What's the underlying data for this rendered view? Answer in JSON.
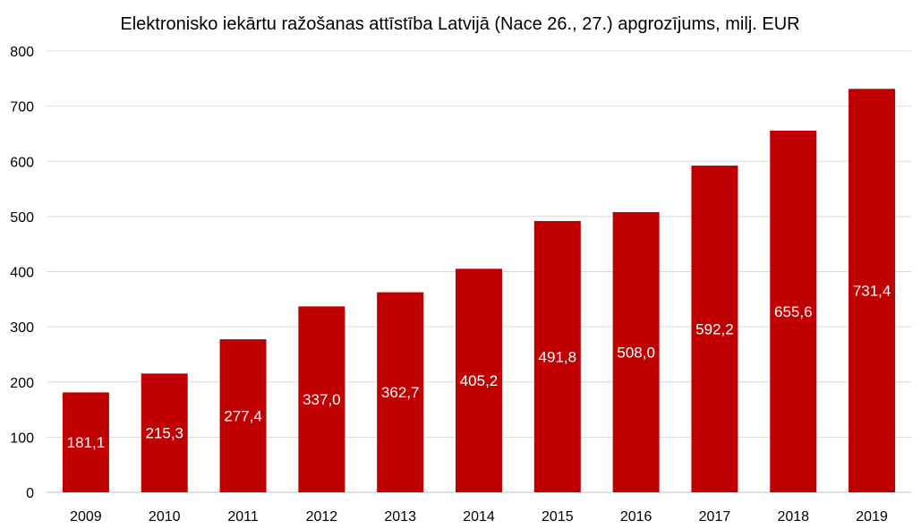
{
  "chart_data": {
    "type": "bar",
    "title": "Elektronisko iekārtu ražošanas attīstība Latvijā (Nace 26., 27.) apgrozījums, milj. EUR",
    "xlabel": "",
    "ylabel": "",
    "categories": [
      "2009",
      "2010",
      "2011",
      "2012",
      "2013",
      "2014",
      "2015",
      "2016",
      "2017",
      "2018",
      "2019"
    ],
    "values": [
      181.1,
      215.3,
      277.4,
      337.0,
      362.7,
      405.2,
      491.8,
      508.0,
      592.2,
      655.6,
      731.4
    ],
    "value_labels": [
      "181,1",
      "215,3",
      "277,4",
      "337,0",
      "362,7",
      "405,2",
      "491,8",
      "508,0",
      "592,2",
      "655,6",
      "731,4"
    ],
    "ylim": [
      0,
      800
    ],
    "yticks": [
      "0",
      "100",
      "200",
      "300",
      "400",
      "500",
      "600",
      "700",
      "800"
    ],
    "grid": true,
    "legend": "none",
    "colors": {
      "bar": "#c00000",
      "grid": "#d9d9d9",
      "label": "#ffffff"
    }
  }
}
